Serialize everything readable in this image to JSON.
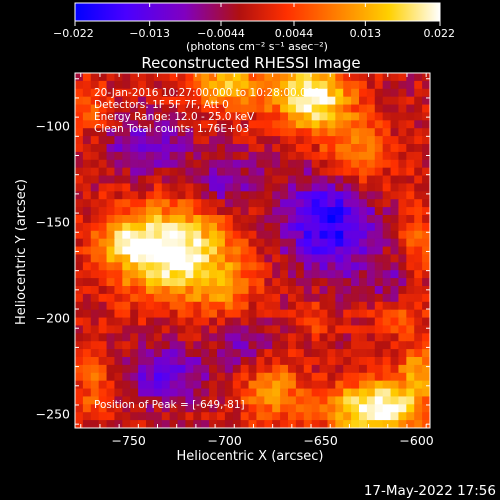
{
  "chart_data": {
    "type": "heatmap",
    "title": "Reconstructed RHESSI Image",
    "xlabel": "Heliocentric X (arcsec)",
    "ylabel": "Heliocentric Y (arcsec)",
    "xlim": [
      -778,
      -593
    ],
    "ylim": [
      -257,
      -72
    ],
    "x_ticks": [
      -750,
      -700,
      -650,
      -600
    ],
    "x_tick_labels": [
      "−750",
      "−700",
      "−650",
      "−600"
    ],
    "y_ticks": [
      -100,
      -150,
      -200,
      -250
    ],
    "y_tick_labels": [
      "−100",
      "−150",
      "−200",
      "−250"
    ],
    "colorbar": {
      "range": [
        -0.022,
        0.022
      ],
      "ticks": [
        -0.022,
        -0.013,
        -0.0044,
        0.0044,
        0.013,
        0.022
      ],
      "tick_labels": [
        "−0.022",
        "−0.013",
        "−0.0044",
        "0.0044",
        "0.013",
        "0.022"
      ],
      "unit_label": "(photons cm⁻² s⁻¹ asec⁻²)",
      "colors": [
        "#0000ff",
        "#4a00ff",
        "#8000c0",
        "#b01010",
        "#ff3000",
        "#ff8000",
        "#ffd000",
        "#ffffff"
      ]
    },
    "annotations": [
      "20-Jan-2016 10:27:00.000 to 10:28:00.000",
      "Detectors: 1F 5F 7F, Att 0",
      "Energy Range: 12.0 - 25.0 keV",
      "Clean     Total counts: 1.76E+03"
    ],
    "peak_label": "Position of Peak = [-649,-81]",
    "grid": false,
    "sources": [
      {
        "x": -655,
        "y": -85,
        "sx": 14,
        "sy": 12,
        "amp": 0.024
      },
      {
        "x": -700,
        "y": -78,
        "sx": 14,
        "sy": 9,
        "amp": 0.016
      },
      {
        "x": -632,
        "y": -115,
        "sx": 12,
        "sy": 14,
        "amp": 0.013
      },
      {
        "x": -728,
        "y": -165,
        "sx": 22,
        "sy": 16,
        "amp": 0.026
      },
      {
        "x": -752,
        "y": -158,
        "sx": 10,
        "sy": 8,
        "amp": 0.01
      },
      {
        "x": -700,
        "y": -185,
        "sx": 12,
        "sy": 10,
        "amp": 0.008
      },
      {
        "x": -620,
        "y": -247,
        "sx": 18,
        "sy": 10,
        "amp": 0.026
      },
      {
        "x": -598,
        "y": -225,
        "sx": 8,
        "sy": 9,
        "amp": 0.012
      },
      {
        "x": -675,
        "y": -238,
        "sx": 12,
        "sy": 12,
        "amp": 0.012
      },
      {
        "x": -610,
        "y": -200,
        "sx": 10,
        "sy": 6,
        "amp": 0.008
      },
      {
        "x": -768,
        "y": -235,
        "sx": 8,
        "sy": 14,
        "amp": 0.008
      },
      {
        "x": -770,
        "y": -90,
        "sx": 7,
        "sy": 10,
        "amp": 0.009
      },
      {
        "x": -600,
        "y": -158,
        "sx": 7,
        "sy": 18,
        "amp": 0.007
      },
      {
        "x": -652,
        "y": -200,
        "sx": 8,
        "sy": 8,
        "amp": 0.006
      },
      {
        "x": -742,
        "y": -110,
        "sx": 14,
        "sy": 10,
        "amp": -0.01
      },
      {
        "x": -645,
        "y": -150,
        "sx": 16,
        "sy": 18,
        "amp": -0.018
      },
      {
        "x": -730,
        "y": -228,
        "sx": 14,
        "sy": 10,
        "amp": -0.012
      },
      {
        "x": -700,
        "y": -130,
        "sx": 12,
        "sy": 10,
        "amp": -0.008
      },
      {
        "x": -690,
        "y": -215,
        "sx": 10,
        "sy": 9,
        "amp": -0.007
      },
      {
        "x": -612,
        "y": -180,
        "sx": 9,
        "sy": 8,
        "amp": -0.006
      }
    ]
  },
  "footer": {
    "timestamp": "17-May-2022 17:56"
  }
}
